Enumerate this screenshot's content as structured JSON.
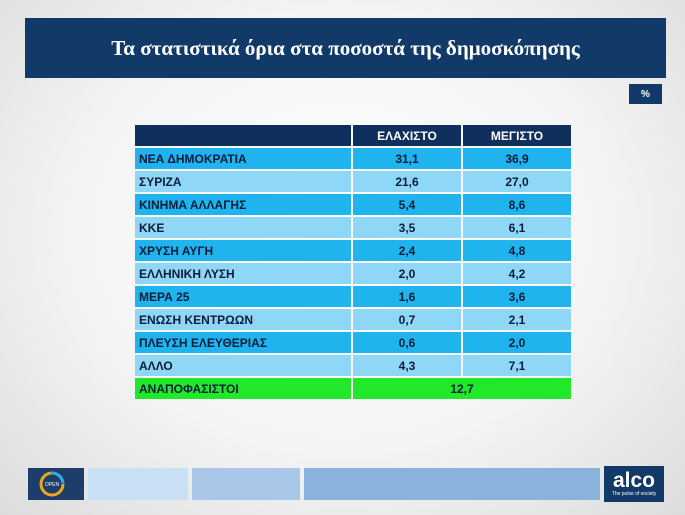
{
  "title": "Τα στατιστικά όρια στα ποσοστά της δημοσκόπησης",
  "unit": "%",
  "table": {
    "headers": [
      "",
      "ΕΛΑΧΙΣΤΟ",
      "ΜΕΓΙΣΤΟ"
    ],
    "rows": [
      {
        "party": "ΝΕΑ ΔΗΜΟΚΡΑΤΙΑ",
        "min": "31,1",
        "max": "36,9"
      },
      {
        "party": "ΣΥΡΙΖΑ",
        "min": "21,6",
        "max": "27,0"
      },
      {
        "party": "ΚΙΝΗΜΑ ΑΛΛΑΓΗΣ",
        "min": "5,4",
        "max": "8,6"
      },
      {
        "party": "ΚΚΕ",
        "min": "3,5",
        "max": "6,1"
      },
      {
        "party": "ΧΡΥΣΗ ΑΥΓΗ",
        "min": "2,4",
        "max": "4,8"
      },
      {
        "party": "ΕΛΛΗΝΙΚΗ ΛΥΣΗ",
        "min": "2,0",
        "max": "4,2"
      },
      {
        "party": "ΜΕΡΑ 25",
        "min": "1,6",
        "max": "3,6"
      },
      {
        "party": "ΕΝΩΣΗ ΚΕΝΤΡΩΩΝ",
        "min": "0,7",
        "max": "2,1"
      },
      {
        "party": "ΠΛΕΥΣΗ ΕΛΕΥΘΕΡΙΑΣ",
        "min": "0,6",
        "max": "2,0"
      },
      {
        "party": "ΑΛΛΟ",
        "min": "4,3",
        "max": "7,1"
      }
    ],
    "undecided": {
      "party": "ΑΝΑΠΟΦΑΣΙΣΤΟΙ",
      "value": "12,7"
    }
  },
  "footer": {
    "left_logo": "OPEN",
    "right_brand": "alco",
    "right_tagline": "The pulse of society",
    "bar_colors": [
      "#c9dff3",
      "#a9c8e8",
      "#89b2dc"
    ],
    "brand_color": "#123a68"
  }
}
